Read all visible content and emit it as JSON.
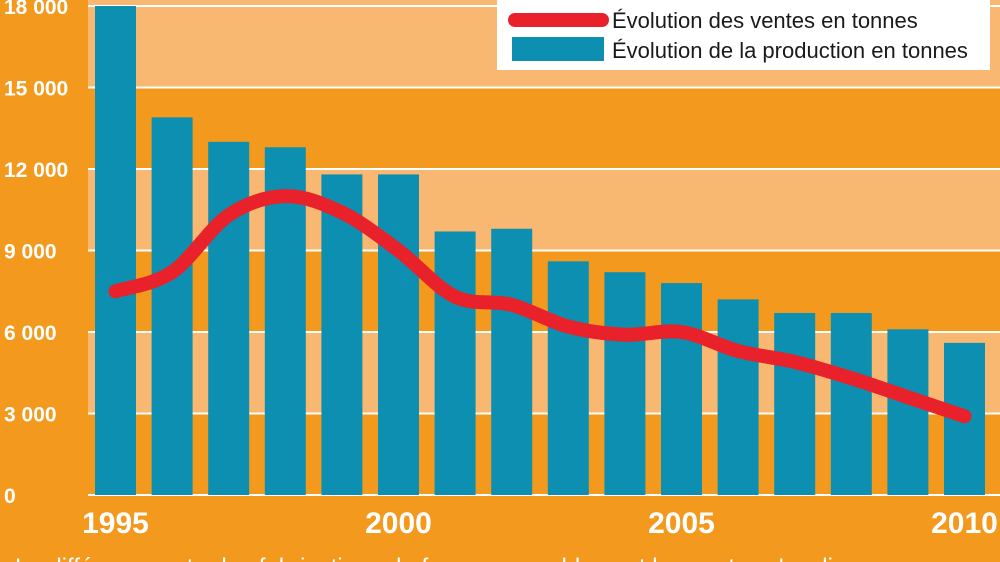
{
  "chart_data": {
    "type": "bar",
    "x": [
      1995,
      1996,
      1997,
      1998,
      1999,
      2000,
      2001,
      2002,
      2003,
      2004,
      2005,
      2006,
      2007,
      2008,
      2009,
      2010
    ],
    "x_tick_labels": [
      {
        "year": 1995,
        "label": "1995"
      },
      {
        "year": 2000,
        "label": "2000"
      },
      {
        "year": 2005,
        "label": "2005"
      },
      {
        "year": 2010,
        "label": "2010"
      }
    ],
    "y_ticks": [
      0,
      3000,
      6000,
      9000,
      12000,
      15000,
      18000
    ],
    "y_tick_labels": [
      "0",
      "3 000",
      "6 000",
      "9 000",
      "12 000",
      "15 000",
      "18 000"
    ],
    "ylim": [
      0,
      18000
    ],
    "grid": true,
    "legend_position": "top-right",
    "series": [
      {
        "name": "Évolution des ventes en tonnes",
        "type": "line",
        "color": "#e8212a",
        "values": [
          7500,
          8200,
          10300,
          11000,
          10400,
          9000,
          7300,
          7000,
          6200,
          5900,
          6000,
          5300,
          4900,
          4300,
          3600,
          2900
        ]
      },
      {
        "name": "Évolution de la production en tonnes",
        "type": "bar",
        "color": "#0c8fb0",
        "values": [
          18000,
          13900,
          13000,
          12800,
          11800,
          11800,
          9700,
          9800,
          8600,
          8200,
          7800,
          7200,
          6700,
          6700,
          6100,
          5600
        ]
      }
    ],
    "caption": "La différence entre les fabrications de fromages en blanc et les ventes s'explique"
  },
  "colors": {
    "background": "#f39a1e",
    "band_light": "#f8b871",
    "band_dark": "#f39a1e",
    "gridline": "#ffffff",
    "bar": "#0c8fb0",
    "line": "#e8212a"
  }
}
